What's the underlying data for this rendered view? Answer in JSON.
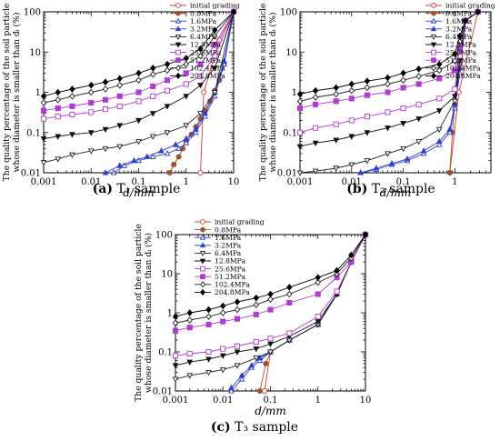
{
  "legend_labels": [
    "initial grading",
    "0.8MPa",
    "1.6MPa",
    "3.2MPa",
    "6.4MPa",
    "12.8MPa",
    "25.6MPa",
    "51.2MPa",
    "102.4MPa",
    "204.8MPa"
  ],
  "series_styles": [
    {
      "color": "#e8353a",
      "marker": "circle-open",
      "fill": "#ffffff"
    },
    {
      "color": "#a0522d",
      "marker": "circle",
      "fill": "#a0522d"
    },
    {
      "color": "#2b3fd6",
      "marker": "triangle-open",
      "fill": "#ffffff"
    },
    {
      "color": "#2b3fd6",
      "marker": "triangle",
      "fill": "#2b3fd6"
    },
    {
      "color": "#222222",
      "marker": "triangle-down-open",
      "fill": "#ffffff"
    },
    {
      "color": "#111111",
      "marker": "triangle-down",
      "fill": "#111111"
    },
    {
      "color": "#b23ad6",
      "marker": "square-open",
      "fill": "#ffffff"
    },
    {
      "color": "#b23ad6",
      "marker": "square",
      "fill": "#b23ad6"
    },
    {
      "color": "#222222",
      "marker": "diamond-open",
      "fill": "#ffffff"
    },
    {
      "color": "#000000",
      "marker": "diamond",
      "fill": "#000000"
    }
  ],
  "chart_data": [
    {
      "type": "line",
      "caption": {
        "letter": "(a)",
        "text": "T₁ sample"
      },
      "xlabel": "d/mm",
      "ylabel": [
        "The quality percentage of the soil particle",
        "whose diameter is smaller than dᵢ (%)"
      ],
      "xscale": "log",
      "yscale": "log",
      "xlim": [
        0.001,
        10
      ],
      "ylim": [
        0.01,
        100
      ],
      "xticks": [
        "0.001",
        "0.01",
        "0.1",
        "1",
        "10"
      ],
      "yticks": [
        "0.01",
        "0.1",
        "1",
        "10",
        "100"
      ],
      "legend_position": "top-right",
      "series": [
        {
          "name": "initial grading",
          "x": [
            2,
            2.36,
            5,
            10
          ],
          "y": [
            0.01,
            1,
            20,
            100
          ]
        },
        {
          "name": "0.8MPa",
          "x": [
            0.45,
            0.55,
            0.7,
            0.85,
            1,
            1.3,
            1.6,
            2,
            2.5,
            3.2,
            4,
            5,
            6.3,
            10
          ],
          "y": [
            0.01,
            0.016,
            0.025,
            0.04,
            0.06,
            0.09,
            0.14,
            0.22,
            0.35,
            0.6,
            1.1,
            2,
            5,
            100
          ]
        },
        {
          "name": "1.6MPa",
          "x": [
            0.03,
            0.05,
            0.1,
            0.2,
            0.4,
            0.7,
            1,
            1.6,
            2.5,
            4,
            6.3,
            10
          ],
          "y": [
            0.01,
            0.015,
            0.02,
            0.025,
            0.03,
            0.04,
            0.055,
            0.1,
            0.25,
            0.8,
            5,
            100
          ]
        },
        {
          "name": "3.2MPa",
          "x": [
            0.02,
            0.04,
            0.08,
            0.15,
            0.3,
            0.6,
            1,
            1.6,
            2.5,
            4,
            6.3,
            10
          ],
          "y": [
            0.01,
            0.015,
            0.02,
            0.025,
            0.035,
            0.05,
            0.07,
            0.12,
            0.3,
            1,
            6,
            100
          ]
        },
        {
          "name": "6.4MPa",
          "x": [
            0.001,
            0.002,
            0.004,
            0.01,
            0.02,
            0.04,
            0.1,
            0.2,
            0.4,
            1,
            2,
            4,
            10
          ],
          "y": [
            0.018,
            0.022,
            0.028,
            0.035,
            0.04,
            0.045,
            0.06,
            0.08,
            0.1,
            0.15,
            0.3,
            1,
            100
          ]
        },
        {
          "name": "12.8MPa",
          "x": [
            0.001,
            0.002,
            0.004,
            0.01,
            0.02,
            0.04,
            0.1,
            0.2,
            0.4,
            1,
            2,
            4,
            10
          ],
          "y": [
            0.07,
            0.08,
            0.09,
            0.1,
            0.12,
            0.15,
            0.2,
            0.3,
            0.45,
            0.8,
            1.5,
            4,
            100
          ]
        },
        {
          "name": "25.6MPa",
          "x": [
            0.001,
            0.002,
            0.004,
            0.01,
            0.02,
            0.04,
            0.1,
            0.2,
            0.4,
            1,
            2,
            4,
            10
          ],
          "y": [
            0.22,
            0.25,
            0.28,
            0.32,
            0.38,
            0.45,
            0.6,
            0.8,
            1.1,
            1.6,
            2.5,
            8,
            100
          ]
        },
        {
          "name": "51.2MPa",
          "x": [
            0.001,
            0.002,
            0.004,
            0.01,
            0.02,
            0.04,
            0.1,
            0.2,
            0.4,
            1,
            2,
            4,
            10
          ],
          "y": [
            0.35,
            0.4,
            0.45,
            0.55,
            0.65,
            0.8,
            1,
            1.4,
            2,
            3,
            5,
            15,
            100
          ]
        },
        {
          "name": "102.4MPa",
          "x": [
            0.001,
            0.002,
            0.004,
            0.01,
            0.02,
            0.04,
            0.1,
            0.2,
            0.4,
            1,
            2,
            4,
            10
          ],
          "y": [
            0.55,
            0.65,
            0.8,
            1,
            1.2,
            1.5,
            2,
            2.8,
            3.5,
            5,
            8,
            25,
            100
          ]
        },
        {
          "name": "204.8MPa",
          "x": [
            0.001,
            0.002,
            0.004,
            0.01,
            0.02,
            0.04,
            0.1,
            0.2,
            0.4,
            1,
            2,
            4,
            10
          ],
          "y": [
            0.8,
            1,
            1.2,
            1.5,
            1.8,
            2.2,
            3,
            4,
            5,
            7,
            12,
            35,
            100
          ]
        }
      ]
    },
    {
      "type": "line",
      "caption": {
        "letter": "(b)",
        "text": "T₂ sample"
      },
      "xlabel": "d/mm",
      "ylabel": [
        "The quality percentage of the soil particle",
        "whose diameter is smaller than dᵢ (%)"
      ],
      "xscale": "log",
      "yscale": "log",
      "xlim": [
        0.001,
        5
      ],
      "ylim": [
        0.01,
        100
      ],
      "xticks": [
        "0.001",
        "0.01",
        "0.1",
        "1"
      ],
      "yticks": [
        "0.01",
        "0.1",
        "1",
        "10",
        "100"
      ],
      "legend_position": "top-right",
      "series": [
        {
          "name": "initial grading",
          "x": [
            0.8,
            1.2,
            2.8
          ],
          "y": [
            0.01,
            1,
            100
          ]
        },
        {
          "name": "0.8MPa",
          "x": [
            0.8,
            0.9,
            1,
            1.25,
            1.6,
            2.8
          ],
          "y": [
            0.01,
            0.1,
            0.5,
            5,
            60,
            100
          ]
        },
        {
          "name": "1.6MPa",
          "x": [
            0.015,
            0.03,
            0.06,
            0.12,
            0.25,
            0.5,
            0.8,
            1,
            1.25,
            1.6,
            2.8
          ],
          "y": [
            0.01,
            0.012,
            0.016,
            0.02,
            0.03,
            0.05,
            0.1,
            0.4,
            3,
            60,
            100
          ]
        },
        {
          "name": "3.2MPa",
          "x": [
            0.015,
            0.03,
            0.06,
            0.12,
            0.25,
            0.5,
            0.8,
            1,
            1.25,
            1.6,
            2.8
          ],
          "y": [
            0.01,
            0.013,
            0.017,
            0.022,
            0.035,
            0.06,
            0.12,
            0.5,
            4,
            60,
            100
          ]
        },
        {
          "name": "6.4MPa",
          "x": [
            0.001,
            0.002,
            0.005,
            0.01,
            0.02,
            0.05,
            0.1,
            0.2,
            0.5,
            1,
            1.25,
            1.6,
            2.8
          ],
          "y": [
            0.01,
            0.011,
            0.013,
            0.016,
            0.02,
            0.03,
            0.04,
            0.06,
            0.12,
            0.6,
            5,
            60,
            100
          ]
        },
        {
          "name": "12.8MPa",
          "x": [
            0.001,
            0.002,
            0.005,
            0.01,
            0.02,
            0.05,
            0.1,
            0.2,
            0.5,
            1,
            1.25,
            1.6,
            2.8
          ],
          "y": [
            0.045,
            0.055,
            0.065,
            0.08,
            0.1,
            0.13,
            0.17,
            0.22,
            0.35,
            0.8,
            6,
            60,
            100
          ]
        },
        {
          "name": "25.6MPa",
          "x": [
            0.001,
            0.002,
            0.005,
            0.01,
            0.02,
            0.05,
            0.1,
            0.2,
            0.5,
            1,
            1.25,
            1.6,
            2.8
          ],
          "y": [
            0.1,
            0.13,
            0.16,
            0.2,
            0.25,
            0.32,
            0.4,
            0.5,
            0.7,
            1.2,
            8,
            60,
            100
          ]
        },
        {
          "name": "51.2MPa",
          "x": [
            0.001,
            0.002,
            0.005,
            0.01,
            0.02,
            0.05,
            0.1,
            0.2,
            0.5,
            1,
            1.25,
            1.6,
            2.8
          ],
          "y": [
            0.4,
            0.5,
            0.6,
            0.7,
            0.85,
            1,
            1.3,
            1.6,
            2.2,
            3.5,
            12,
            60,
            100
          ]
        },
        {
          "name": "102.4MPa",
          "x": [
            0.001,
            0.002,
            0.005,
            0.01,
            0.02,
            0.05,
            0.1,
            0.2,
            0.5,
            1,
            1.25,
            1.6,
            2.8
          ],
          "y": [
            0.6,
            0.75,
            0.9,
            1.1,
            1.3,
            1.6,
            2,
            2.5,
            3.5,
            6,
            18,
            60,
            100
          ]
        },
        {
          "name": "204.8MPa",
          "x": [
            0.001,
            0.002,
            0.005,
            0.01,
            0.02,
            0.05,
            0.1,
            0.2,
            0.5,
            1,
            1.25,
            1.6,
            2.8
          ],
          "y": [
            0.9,
            1.1,
            1.3,
            1.6,
            1.9,
            2.3,
            3,
            3.8,
            5,
            9,
            25,
            60,
            100
          ]
        }
      ]
    },
    {
      "type": "line",
      "caption": {
        "letter": "(c)",
        "text": "T₃ sample"
      },
      "xlabel": "d/mm",
      "ylabel": [
        "The quality percentage of the soil particle",
        "whose diameter is smaller than dᵢ (%)"
      ],
      "xscale": "log",
      "yscale": "log",
      "xlim": [
        0.001,
        10
      ],
      "ylim": [
        0.01,
        100
      ],
      "xticks": [
        "0.001",
        "0.01",
        "0.1",
        "1",
        "10"
      ],
      "yticks": [
        "0.01",
        "0.1",
        "1",
        "10",
        "100"
      ],
      "legend_position": "top-left",
      "series": [
        {
          "name": "initial grading",
          "x": [
            0.075,
            0.1,
            0.25,
            1,
            2.5,
            5,
            10
          ],
          "y": [
            0.01,
            0.1,
            0.2,
            0.5,
            3,
            20,
            100
          ]
        },
        {
          "name": "0.8MPa",
          "x": [
            0.06,
            0.08,
            0.1,
            0.25,
            1,
            2.5,
            5,
            10
          ],
          "y": [
            0.01,
            0.05,
            0.1,
            0.2,
            0.5,
            3,
            20,
            100
          ]
        },
        {
          "name": "1.6MPa",
          "x": [
            0.015,
            0.025,
            0.04,
            0.06,
            0.1,
            0.25,
            1,
            2.5,
            5,
            10
          ],
          "y": [
            0.01,
            0.02,
            0.04,
            0.06,
            0.1,
            0.2,
            0.5,
            3,
            20,
            100
          ]
        },
        {
          "name": "3.2MPa",
          "x": [
            0.015,
            0.025,
            0.04,
            0.06,
            0.1,
            0.25,
            1,
            2.5,
            5,
            10
          ],
          "y": [
            0.012,
            0.025,
            0.045,
            0.07,
            0.1,
            0.2,
            0.5,
            3,
            20,
            100
          ]
        },
        {
          "name": "6.4MPa",
          "x": [
            0.001,
            0.002,
            0.005,
            0.01,
            0.02,
            0.05,
            0.1,
            0.25,
            1,
            2.5,
            5,
            10
          ],
          "y": [
            0.02,
            0.025,
            0.03,
            0.035,
            0.045,
            0.07,
            0.1,
            0.2,
            0.5,
            3,
            20,
            100
          ]
        },
        {
          "name": "12.8MPa",
          "x": [
            0.001,
            0.002,
            0.005,
            0.01,
            0.02,
            0.05,
            0.1,
            0.25,
            1,
            2.5,
            5,
            10
          ],
          "y": [
            0.045,
            0.055,
            0.065,
            0.08,
            0.1,
            0.12,
            0.16,
            0.25,
            0.6,
            3,
            20,
            100
          ]
        },
        {
          "name": "25.6MPa",
          "x": [
            0.001,
            0.002,
            0.005,
            0.01,
            0.02,
            0.05,
            0.1,
            0.25,
            1,
            2.5,
            5,
            10
          ],
          "y": [
            0.08,
            0.09,
            0.1,
            0.12,
            0.14,
            0.18,
            0.22,
            0.3,
            0.8,
            3.5,
            20,
            100
          ]
        },
        {
          "name": "51.2MPa",
          "x": [
            0.001,
            0.002,
            0.005,
            0.01,
            0.02,
            0.05,
            0.1,
            0.25,
            1,
            2.5,
            5,
            10
          ],
          "y": [
            0.35,
            0.42,
            0.5,
            0.6,
            0.7,
            0.9,
            1.2,
            1.8,
            3,
            8,
            20,
            100
          ]
        },
        {
          "name": "102.4MPa",
          "x": [
            0.001,
            0.002,
            0.005,
            0.01,
            0.02,
            0.05,
            0.1,
            0.25,
            1,
            2.5,
            5,
            10
          ],
          "y": [
            0.55,
            0.65,
            0.8,
            1,
            1.2,
            1.6,
            2.2,
            3,
            6,
            10,
            25,
            100
          ]
        },
        {
          "name": "204.8MPa",
          "x": [
            0.001,
            0.002,
            0.005,
            0.01,
            0.02,
            0.05,
            0.1,
            0.25,
            1,
            2.5,
            5,
            10
          ],
          "y": [
            0.8,
            1,
            1.2,
            1.5,
            1.9,
            2.4,
            3,
            4.5,
            8,
            12,
            30,
            100
          ]
        }
      ]
    }
  ]
}
